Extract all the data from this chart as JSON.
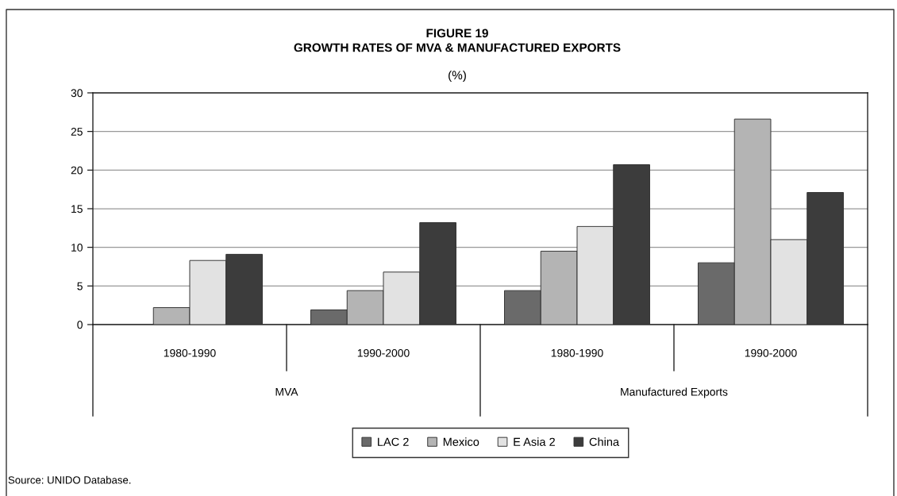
{
  "chart_data": {
    "type": "bar",
    "title": "FIGURE 19\nGROWTH RATES OF MVA & MANUFACTURED EXPORTS",
    "subtitle": "(%)",
    "categories": [
      "1980-1990",
      "1990-2000",
      "1980-1990",
      "1990-2000"
    ],
    "series": [
      {
        "name": "LAC 2",
        "color": "#6a6a6a",
        "values": [
          null,
          1.9,
          4.4,
          8.0
        ]
      },
      {
        "name": "Mexico",
        "color": "#b4b4b4",
        "values": [
          2.2,
          4.4,
          9.5,
          26.6
        ]
      },
      {
        "name": "E Asia 2",
        "color": "#e2e2e2",
        "values": [
          8.3,
          6.8,
          12.7,
          11.0
        ]
      },
      {
        "name": "China",
        "color": "#3c3c3c",
        "values": [
          9.1,
          13.2,
          20.7,
          17.1
        ]
      }
    ],
    "ylim": [
      0,
      30
    ],
    "yticks": [
      0,
      5,
      10,
      15,
      20,
      25,
      30
    ],
    "grid": "y",
    "legend": "bottom",
    "annotations": [
      "MVA",
      "Manufactured Exports",
      "Source: UNIDO Database."
    ]
  }
}
